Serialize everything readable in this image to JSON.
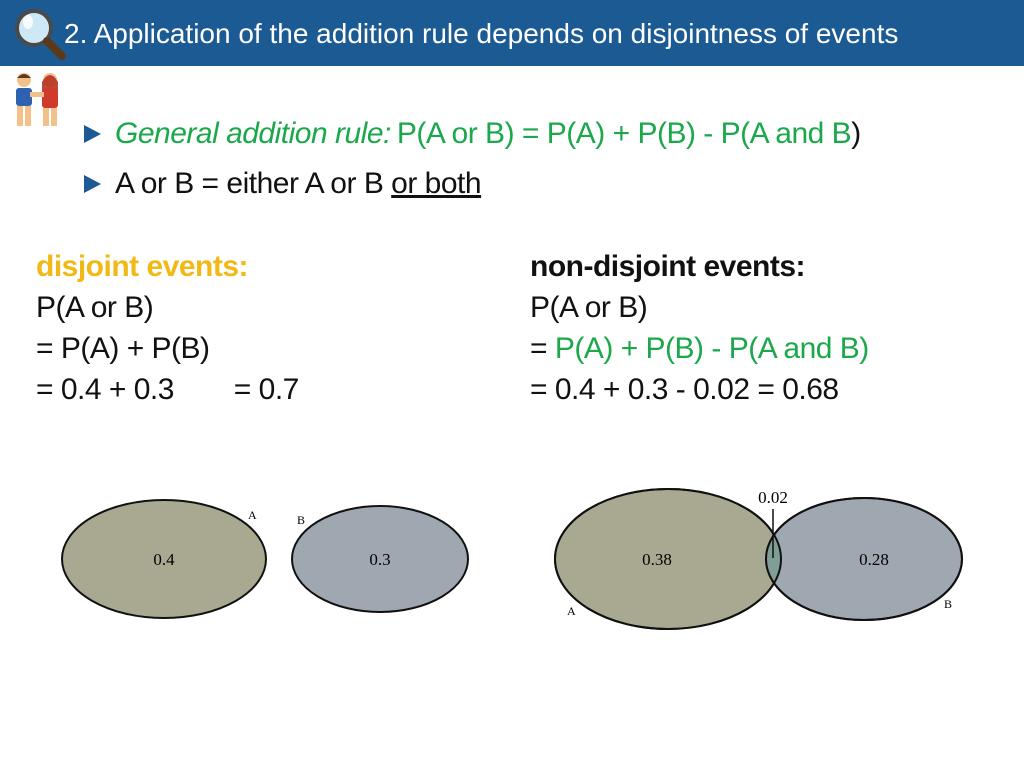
{
  "header": {
    "title": "2. Application of the addition rule depends on disjointness of events"
  },
  "icons": {
    "magnifier": "magnifying-glass-icon",
    "people": "couple-icon"
  },
  "bullets": [
    {
      "label": "General addition rule:",
      "formula": "P(A or B) = P(A) + P(B) - P(A and B",
      "close": ")"
    },
    {
      "prefix": "A or B = either A or B ",
      "underlined": "or both"
    }
  ],
  "disjoint": {
    "heading": "disjoint events:",
    "line1": "P(A or B)",
    "line2": "= P(A) + P(B)",
    "line3a": "= 0.4 + 0.3",
    "line3b": "= 0.7"
  },
  "nondisjoint": {
    "heading": "non-disjoint events:",
    "line1": "P(A or B)",
    "line2_prefix": "= ",
    "line2_formula": "P(A) + P(B) - P(A and B)",
    "line3": "= 0.4 + 0.3 - 0.02 = 0.68"
  },
  "venn_disjoint": {
    "a_label": "A",
    "a_value": "0.4",
    "b_label": "B",
    "b_value": "0.3",
    "a_color": "#a9a890",
    "b_color": "#9fa8b0"
  },
  "venn_overlap": {
    "a_label": "A",
    "a_value": "0.38",
    "b_label": "B",
    "b_value": "0.28",
    "overlap_value": "0.02",
    "a_color": "#a9a890",
    "b_color": "#9fa8b0",
    "overlap_color": "#7f9e96"
  }
}
